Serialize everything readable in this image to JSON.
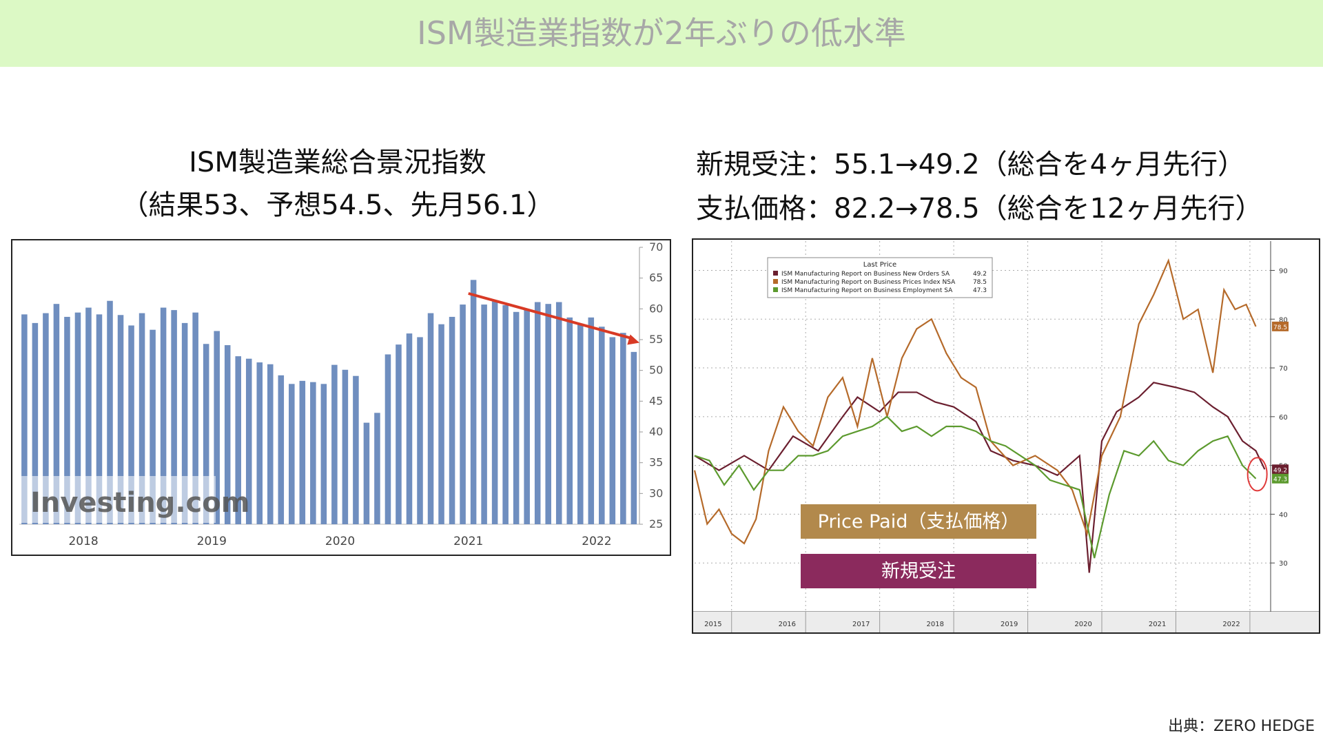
{
  "banner": {
    "title": "ISM製造業指数が2年ぶりの低水準"
  },
  "left_heading": {
    "line1": "ISM製造業総合景況指数",
    "line2": "（結果53、予想54.5、先月56.1）"
  },
  "right_heading": {
    "line1": "新規受注：55.1→49.2（総合を4ヶ月先行）",
    "line2": "支払価格：82.2→78.5（総合を12ヶ月先行）"
  },
  "source": "出典：ZERO HEDGE",
  "colors": {
    "bar": "#6f8ebf",
    "arrow": "#d83a25",
    "new_orders": "#6b1f2f",
    "prices": "#b56a2a",
    "employment": "#5c9a2e",
    "price_label": "#b2894c",
    "orders_label": "#8b2a5d"
  },
  "chart_data": [
    {
      "type": "bar",
      "watermark": "Investing.com",
      "x_ticks": [
        "2018",
        "2019",
        "2020",
        "2021",
        "2022"
      ],
      "y_ticks": [
        70,
        65,
        60,
        55,
        50,
        45,
        40,
        35,
        30,
        25
      ],
      "ylim": [
        25,
        70
      ],
      "values": [
        59.1,
        57.7,
        59.3,
        60.8,
        58.7,
        59.4,
        60.2,
        59.1,
        61.3,
        59.0,
        57.3,
        59.3,
        56.6,
        60.2,
        59.8,
        57.7,
        59.4,
        54.3,
        56.4,
        54.1,
        52.3,
        51.9,
        51.3,
        51.0,
        49.2,
        47.8,
        48.3,
        48.1,
        47.8,
        50.9,
        50.1,
        49.1,
        41.5,
        43.1,
        52.6,
        54.2,
        56.0,
        55.4,
        59.3,
        57.5,
        58.7,
        60.7,
        64.7,
        60.7,
        61.2,
        60.6,
        59.5,
        59.9,
        61.1,
        60.8,
        61.1,
        58.6,
        57.6,
        58.6,
        57.1,
        55.4,
        56.1,
        53.0
      ],
      "arrow": {
        "from_index": 42,
        "from_value": 62.5,
        "to_index": 57,
        "to_value": 54.5
      }
    },
    {
      "type": "line",
      "legend_title": "Last Price",
      "x_ticks": [
        "2015",
        "2016",
        "2017",
        "2018",
        "2019",
        "2020",
        "2021",
        "2022"
      ],
      "y_ticks": [
        90,
        80,
        70,
        60,
        50,
        40,
        30
      ],
      "ylim": [
        20,
        96
      ],
      "xlim": [
        2015.0,
        2022.78
      ],
      "series": [
        {
          "name": "ISM Manufacturing Report on Business New Orders SA",
          "last": "49.2",
          "x": [
            2015.0,
            2015.33,
            2015.67,
            2016.0,
            2016.33,
            2016.67,
            2017.0,
            2017.2,
            2017.5,
            2017.75,
            2018.0,
            2018.25,
            2018.5,
            2018.8,
            2019.0,
            2019.3,
            2019.6,
            2019.9,
            2020.2,
            2020.33,
            2020.5,
            2020.7,
            2021.0,
            2021.2,
            2021.5,
            2021.75,
            2022.0,
            2022.2,
            2022.4,
            2022.58,
            2022.7
          ],
          "values": [
            52,
            49,
            52,
            49,
            56,
            53,
            60,
            64,
            61,
            65,
            65,
            63,
            62,
            59,
            53,
            51,
            50,
            48,
            52,
            28,
            55,
            61,
            64,
            67,
            66,
            65,
            62,
            60,
            55,
            53,
            49.2
          ]
        },
        {
          "name": "ISM Manufacturing Report on Business Prices Index NSA",
          "last": "78.5",
          "x": [
            2015.0,
            2015.17,
            2015.33,
            2015.5,
            2015.67,
            2015.83,
            2016.0,
            2016.2,
            2016.4,
            2016.6,
            2016.8,
            2017.0,
            2017.2,
            2017.4,
            2017.6,
            2017.8,
            2018.0,
            2018.2,
            2018.4,
            2018.6,
            2018.8,
            2019.0,
            2019.3,
            2019.6,
            2019.9,
            2020.1,
            2020.3,
            2020.5,
            2020.75,
            2021.0,
            2021.2,
            2021.4,
            2021.6,
            2021.8,
            2022.0,
            2022.15,
            2022.3,
            2022.45,
            2022.58
          ],
          "values": [
            49,
            38,
            41,
            36,
            34,
            39,
            53,
            62,
            57,
            54,
            64,
            68,
            58,
            72,
            60,
            72,
            78,
            80,
            73,
            68,
            66,
            55,
            50,
            52,
            49,
            45,
            36,
            52,
            60,
            79,
            85,
            92,
            80,
            82,
            69,
            86,
            82,
            83,
            78.5
          ]
        },
        {
          "name": "ISM Manufacturing Report on Business Employment SA",
          "last": "47.3",
          "x": [
            2015.0,
            2015.2,
            2015.4,
            2015.6,
            2015.8,
            2016.0,
            2016.2,
            2016.4,
            2016.6,
            2016.8,
            2017.0,
            2017.2,
            2017.4,
            2017.6,
            2017.8,
            2018.0,
            2018.2,
            2018.4,
            2018.6,
            2018.8,
            2019.0,
            2019.2,
            2019.4,
            2019.6,
            2019.8,
            2020.0,
            2020.2,
            2020.4,
            2020.6,
            2020.8,
            2021.0,
            2021.2,
            2021.4,
            2021.6,
            2021.8,
            2022.0,
            2022.2,
            2022.4,
            2022.58
          ],
          "values": [
            52,
            51,
            46,
            50,
            45,
            49,
            49,
            52,
            52,
            53,
            56,
            57,
            58,
            60,
            57,
            58,
            56,
            58,
            58,
            57,
            55,
            54,
            52,
            50,
            47,
            46,
            45,
            31,
            44,
            53,
            52,
            55,
            51,
            50,
            53,
            55,
            56,
            50,
            47.3
          ]
        }
      ],
      "right_labels": [
        "78.5",
        "49.2",
        "47.3"
      ]
    }
  ],
  "callouts": {
    "price_paid": "Price Paid（支払価格）",
    "new_orders": "新規受注"
  }
}
